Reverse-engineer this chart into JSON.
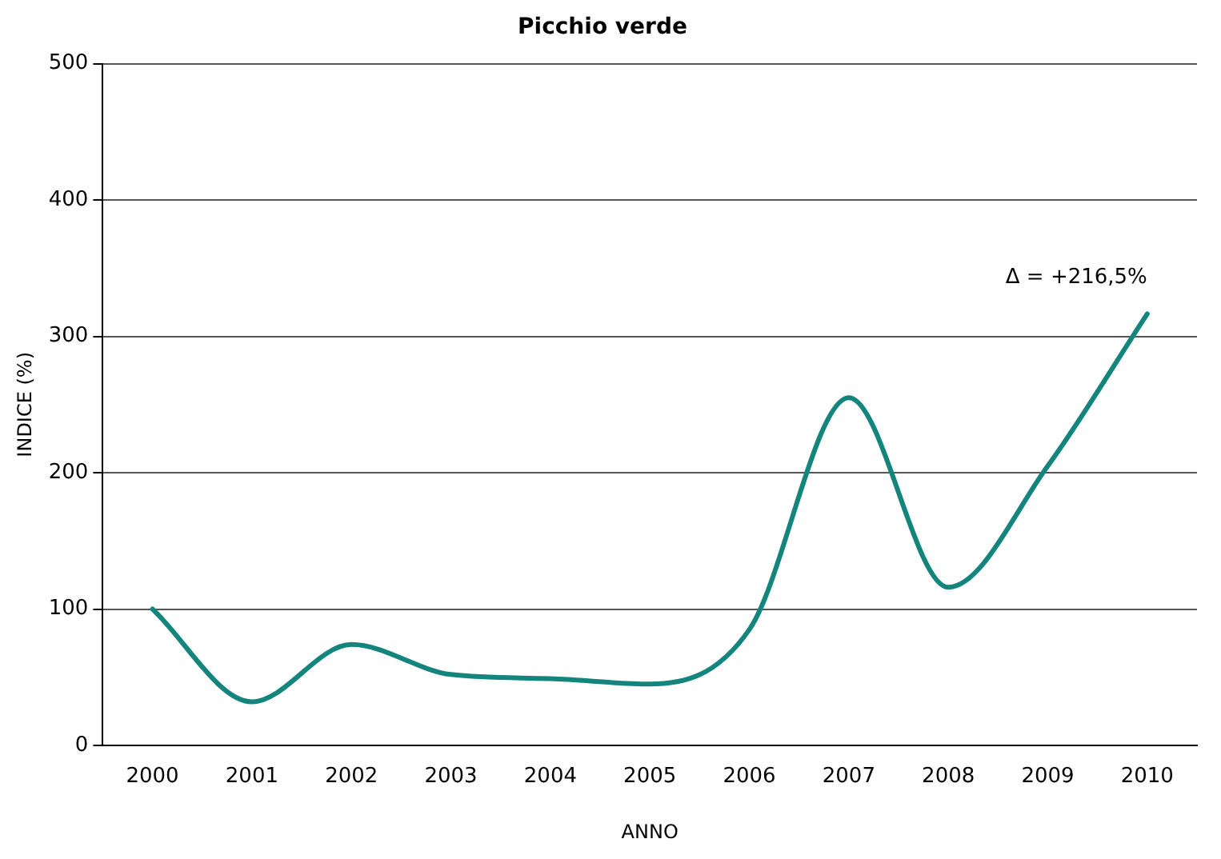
{
  "chart_data": {
    "type": "line",
    "title": "Picchio verde",
    "xlabel": "ANNO",
    "ylabel": "INDICE (%)",
    "categories": [
      "2000",
      "2001",
      "2002",
      "2003",
      "2004",
      "2005",
      "2006",
      "2007",
      "2008",
      "2009",
      "2010"
    ],
    "series": [
      {
        "color": "#13857d",
        "values": [
          100,
          32,
          74,
          52,
          49,
          45,
          85,
          255,
          116,
          205,
          316.5
        ]
      }
    ],
    "ylim": [
      0,
      500
    ],
    "yticks": [
      0,
      100,
      200,
      300,
      400,
      500
    ],
    "grid": "y",
    "legend": false,
    "marker": "none",
    "line_style": "solid",
    "annotations": [
      {
        "text": "Δ = +216,5%",
        "x": "2010",
        "y": 316.5
      }
    ]
  }
}
